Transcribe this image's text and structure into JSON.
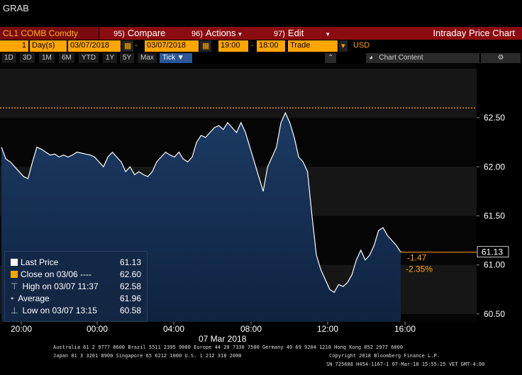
{
  "window": {
    "title": "GRAB"
  },
  "command_bar": {
    "ticker": "CL1 COMB Comdty",
    "compare_num": "95)",
    "compare_label": "Compare",
    "actions_num": "96)",
    "actions_label": "Actions",
    "edit_num": "97)",
    "edit_label": "Edit",
    "chart_title": "Intraday Price Chart"
  },
  "options_bar": {
    "period_value": "1",
    "period_unit": "Day(s)",
    "start_date": "03/07/2018",
    "end_date": "03/07/2018",
    "start_time": "19:00",
    "end_time": "18:00",
    "field": "Trade",
    "currency": "USD",
    "chart_content": "Chart Content"
  },
  "range_bar": {
    "ranges": [
      "1D",
      "3D",
      "1M",
      "6M",
      "YTD",
      "1Y",
      "5Y",
      "Max"
    ],
    "selected": "Tick ▼"
  },
  "legend": {
    "last_price_label": "Last Price",
    "last_price_value": "61.13",
    "close_label": "Close on 03/06 ----",
    "close_value": "62.60",
    "high_label": "High on 03/07 11:37",
    "high_value": "62.58",
    "average_label": "Average",
    "average_value": "61.96",
    "low_label": "Low on 03/07 13:15",
    "low_value": "60.58"
  },
  "annotations": {
    "change": "-1.47",
    "change_pct": "-2.35%",
    "last_tag": "61.13"
  },
  "colors": {
    "accent": "#ffa500",
    "cmd_bar": "#8b0c10",
    "area_fill": "#14304f",
    "line": "#ffffff"
  },
  "chart_data": {
    "type": "line",
    "x_tick_labels": [
      "20:00",
      "00:00",
      "04:00",
      "08:00",
      "12:00",
      "16:00"
    ],
    "x_date_label": "07 Mar 2018",
    "y_tick_labels": [
      "62.50",
      "62.00",
      "61.50",
      "61.00",
      "60.50"
    ],
    "ylim": [
      60.42,
      63.05
    ],
    "reference_line": 62.6,
    "x": [
      0,
      1,
      2,
      3,
      4,
      5,
      6,
      7,
      8,
      9,
      10,
      11,
      12,
      13,
      14,
      15,
      16,
      17,
      18,
      19,
      20,
      21,
      22,
      23,
      24,
      25,
      26,
      27,
      28,
      29,
      30,
      31,
      32,
      33,
      34,
      35,
      36,
      37,
      38,
      39,
      40,
      41,
      42,
      43,
      44,
      45,
      46,
      47,
      48,
      49,
      50,
      51,
      52,
      53,
      54,
      55,
      56,
      57,
      58,
      59,
      60,
      61,
      62,
      63,
      64,
      65,
      66,
      67,
      68,
      69,
      70,
      71,
      72,
      73,
      74,
      75,
      76,
      77,
      78,
      79,
      80,
      81,
      82,
      83,
      84,
      85,
      86,
      87,
      88,
      89,
      90
    ],
    "values": [
      62.2,
      62.08,
      62.05,
      62.0,
      61.95,
      61.9,
      61.88,
      62.05,
      62.2,
      62.18,
      62.15,
      62.12,
      62.13,
      62.1,
      62.12,
      62.1,
      62.12,
      62.15,
      62.14,
      62.13,
      62.12,
      62.1,
      62.05,
      62.0,
      62.1,
      62.15,
      62.1,
      62.05,
      61.95,
      62.0,
      61.92,
      61.95,
      61.92,
      61.9,
      61.95,
      62.05,
      62.1,
      62.15,
      62.12,
      62.1,
      62.15,
      62.08,
      62.05,
      62.1,
      62.25,
      62.32,
      62.3,
      62.35,
      62.4,
      62.42,
      62.38,
      62.45,
      62.4,
      62.35,
      62.45,
      62.35,
      62.2,
      62.05,
      61.9,
      61.75,
      62.0,
      62.1,
      62.2,
      62.45,
      62.55,
      62.45,
      62.3,
      62.1,
      62.05,
      61.95,
      61.5,
      61.1,
      60.95,
      60.85,
      60.75,
      60.72,
      60.8,
      60.78,
      60.82,
      60.9,
      61.05,
      61.15,
      61.05,
      61.1,
      61.2,
      61.35,
      61.38,
      61.3,
      61.25,
      61.2,
      61.13
    ]
  },
  "footer": {
    "line1": "Australia 61 2 9777 8600 Brazil 5511 2395 9000 Europe 44 20 7330 7500 Germany 49 69 9204 1210 Hong Kong 852 2977 6000",
    "line2": "Japan 81 3 3201 8900        Singapore 65 6212 1000        U.S. 1 212 318 2000",
    "line2b": "Copyright 2018 Bloomberg Finance L.P.",
    "line3": "SN 725688 H454-1167-1 07-Mar-18 15:55:25 VET  GMT-4:00"
  }
}
